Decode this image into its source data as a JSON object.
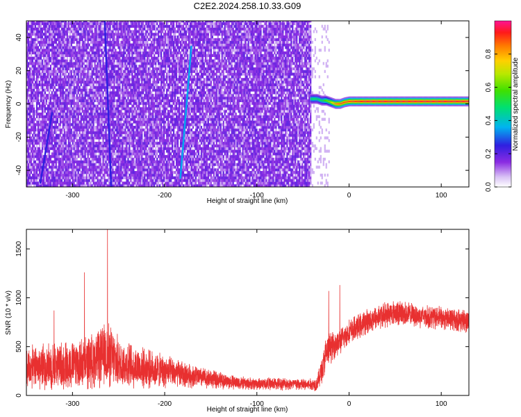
{
  "title": "C2E2.2024.258.10.33.G09",
  "colors": {
    "heatmap_noise": "#8a2be2",
    "snr_line": "#e83030",
    "frame": "#000000"
  },
  "chart_data": [
    {
      "type": "heatmap",
      "xlabel": "Height of straight line (km)",
      "ylabel": "Frequency (Hz)",
      "colorbar_label": "Normalized spectral amplitude",
      "xlim": [
        -350,
        130
      ],
      "ylim": [
        -50,
        50
      ],
      "x_ticks": [
        -300,
        -200,
        -100,
        0,
        100
      ],
      "x_tick_labels": [
        "-300",
        "-200",
        "-100",
        "0",
        "100"
      ],
      "y_ticks": [
        -40,
        -20,
        0,
        20,
        40
      ],
      "y_tick_labels": [
        "-40",
        "-20",
        "0",
        "20",
        "40"
      ],
      "colorbar_range": [
        0,
        1
      ],
      "colorbar_ticks": [
        0,
        0.2,
        0.4,
        0.6,
        0.8
      ],
      "colorbar_tick_labels": [
        "0.0",
        "0.2",
        "0.4",
        "0.6",
        "0.8"
      ],
      "noise_region_x": [
        -350,
        -42
      ],
      "signal": {
        "x": [
          -42,
          -35,
          -30,
          -25,
          -20,
          -15,
          -10,
          -5,
          0,
          20,
          50,
          100,
          130
        ],
        "freq_hz": [
          3,
          3,
          2,
          2,
          1,
          0,
          0,
          1,
          1.5,
          1.5,
          1.5,
          1.5,
          1.5
        ],
        "amplitude": [
          0.5,
          0.5,
          0.5,
          0.6,
          0.7,
          0.85,
          0.9,
          0.9,
          0.9,
          0.95,
          0.95,
          0.95,
          0.95
        ]
      },
      "streaks": [
        {
          "x_start": -258,
          "x_end": -265,
          "y_start": -50,
          "y_end": 50,
          "amplitude": 0.25
        },
        {
          "x_start": -171,
          "x_end": -183,
          "y_start": 35,
          "y_end": -45,
          "amplitude": 0.35
        },
        {
          "x_start": -322,
          "x_end": -335,
          "y_start": -5,
          "y_end": -48,
          "amplitude": 0.25
        }
      ]
    },
    {
      "type": "line",
      "xlabel": "Height of straight line (km)",
      "ylabel": "SNR (10 * v/v)",
      "xlim": [
        -350,
        130
      ],
      "ylim": [
        0,
        1700
      ],
      "x_ticks": [
        -300,
        -200,
        -100,
        0,
        100
      ],
      "x_tick_labels": [
        "-300",
        "-200",
        "-100",
        "0",
        "100"
      ],
      "y_ticks": [
        0,
        500,
        1000,
        1500
      ],
      "y_tick_labels": [
        "0",
        "500",
        "1000",
        "1500"
      ],
      "envelope": {
        "x": [
          -350,
          -330,
          -310,
          -290,
          -270,
          -262,
          -250,
          -230,
          -210,
          -190,
          -170,
          -150,
          -130,
          -110,
          -90,
          -70,
          -50,
          -40,
          -35,
          -28,
          -25,
          -20,
          -15,
          -10,
          -5,
          0,
          10,
          20,
          30,
          40,
          50,
          60,
          70,
          80,
          90,
          100,
          110,
          120,
          130
        ],
        "mean": [
          280,
          300,
          310,
          320,
          380,
          420,
          330,
          290,
          260,
          230,
          200,
          170,
          140,
          120,
          120,
          120,
          110,
          110,
          120,
          300,
          420,
          500,
          520,
          550,
          600,
          650,
          700,
          760,
          800,
          830,
          850,
          840,
          820,
          810,
          800,
          790,
          780,
          770,
          760
        ],
        "spread": [
          200,
          220,
          230,
          240,
          280,
          320,
          240,
          200,
          170,
          140,
          110,
          90,
          70,
          60,
          60,
          60,
          60,
          60,
          70,
          150,
          180,
          150,
          130,
          120,
          120,
          120,
          120,
          120,
          120,
          120,
          120,
          120,
          110,
          110,
          110,
          110,
          110,
          110,
          110
        ]
      },
      "peaks": [
        {
          "x": -262,
          "y": 1700
        },
        {
          "x": -287,
          "y": 1260
        },
        {
          "x": -320,
          "y": 870
        },
        {
          "x": -10,
          "y": 1130
        },
        {
          "x": -22,
          "y": 1070
        }
      ]
    }
  ]
}
